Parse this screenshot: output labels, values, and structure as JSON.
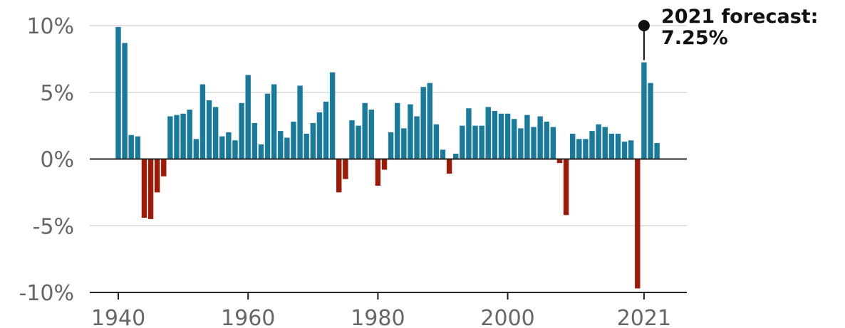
{
  "chart_data": {
    "type": "bar",
    "title": "",
    "xlabel": "",
    "ylabel": "",
    "ylim": [
      -10,
      10
    ],
    "grid": true,
    "legend": "none",
    "colors": {
      "positive": "#1a7a9c",
      "negative": "#9e1a08",
      "axis": "#222222",
      "grid": "#d9d9d9"
    },
    "y_ticks": [
      {
        "value": 10,
        "label": "10%"
      },
      {
        "value": 5,
        "label": "5%"
      },
      {
        "value": 0,
        "label": "0%"
      },
      {
        "value": -5,
        "label": "-5%"
      },
      {
        "value": -10,
        "label": "-10%"
      }
    ],
    "x_ticks": [
      {
        "value": 1940,
        "label": "1940"
      },
      {
        "value": 1960,
        "label": "1960"
      },
      {
        "value": 1980,
        "label": "1980"
      },
      {
        "value": 2000,
        "label": "2000"
      },
      {
        "value": 2021,
        "label": "2021"
      }
    ],
    "x": [
      1940,
      1941,
      1942,
      1943,
      1944,
      1945,
      1946,
      1947,
      1948,
      1949,
      1950,
      1951,
      1952,
      1953,
      1954,
      1955,
      1956,
      1957,
      1958,
      1959,
      1960,
      1961,
      1962,
      1963,
      1964,
      1965,
      1966,
      1967,
      1968,
      1969,
      1970,
      1971,
      1972,
      1973,
      1974,
      1975,
      1976,
      1977,
      1978,
      1979,
      1980,
      1981,
      1982,
      1983,
      1984,
      1985,
      1986,
      1987,
      1988,
      1989,
      1990,
      1991,
      1992,
      1993,
      1994,
      1995,
      1996,
      1997,
      1998,
      1999,
      2000,
      2001,
      2002,
      2003,
      2004,
      2005,
      2006,
      2007,
      2008,
      2009,
      2010,
      2011,
      2012,
      2013,
      2014,
      2015,
      2016,
      2017,
      2018,
      2019,
      2020,
      2021,
      2022,
      2023
    ],
    "values": [
      9.9,
      8.7,
      1.8,
      1.7,
      -4.4,
      -4.5,
      -2.5,
      -1.3,
      3.2,
      3.3,
      3.4,
      3.7,
      1.5,
      5.6,
      4.4,
      3.9,
      1.7,
      2.0,
      1.4,
      4.2,
      6.3,
      2.7,
      1.1,
      4.9,
      5.6,
      2.1,
      1.6,
      2.8,
      5.5,
      1.9,
      2.7,
      3.5,
      4.3,
      6.5,
      -2.5,
      -1.5,
      2.9,
      2.5,
      4.2,
      3.7,
      -2.0,
      -0.8,
      2.0,
      4.2,
      2.3,
      4.1,
      3.2,
      5.4,
      5.7,
      2.6,
      0.7,
      -1.1,
      0.4,
      2.5,
      3.8,
      2.5,
      2.5,
      3.9,
      3.6,
      3.4,
      3.4,
      3.0,
      2.3,
      3.3,
      2.4,
      3.2,
      2.8,
      2.4,
      -0.3,
      -4.2,
      1.9,
      1.5,
      1.5,
      2.1,
      2.6,
      2.4,
      1.9,
      1.9,
      1.3,
      1.4,
      -9.7,
      7.25,
      5.7,
      1.2
    ],
    "annotation": {
      "year": 2021,
      "value": 7.25,
      "line1": "2021 forecast:",
      "line2": "7.25%"
    }
  }
}
